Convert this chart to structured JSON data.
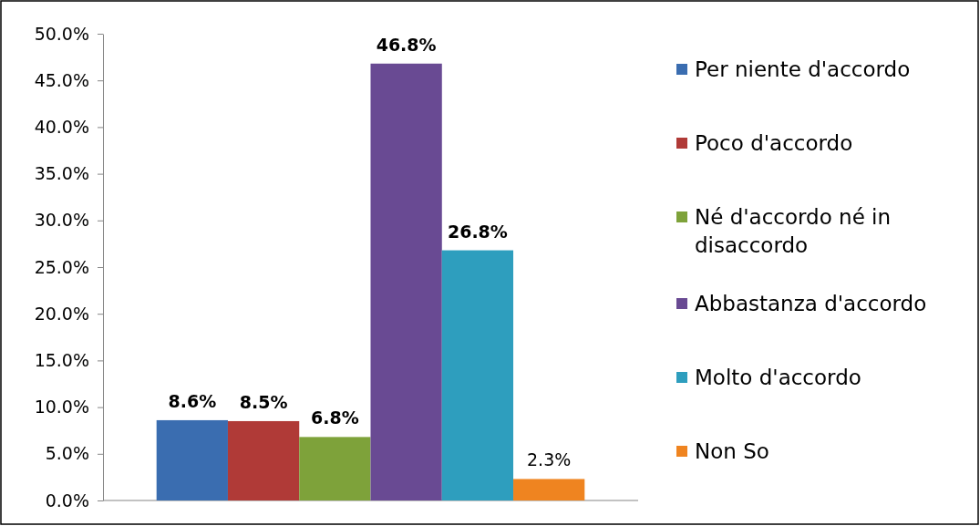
{
  "chart_data": {
    "type": "bar",
    "categories": [
      null
    ],
    "series": [
      {
        "name": "Per niente d'accordo",
        "color": "#3a6db0",
        "values": [
          8.6
        ],
        "value_labels": [
          "8.6%"
        ]
      },
      {
        "name": "Poco d'accordo",
        "color": "#b03a37",
        "values": [
          8.5
        ],
        "value_labels": [
          "8.5%"
        ]
      },
      {
        "name": "Né d'accordo né in disaccordo",
        "color": "#7ea23a",
        "values": [
          6.8
        ],
        "value_labels": [
          "6.8%"
        ]
      },
      {
        "name": "Abbastanza d'accordo",
        "color": "#694a93",
        "values": [
          46.8
        ],
        "value_labels": [
          "46.8%"
        ]
      },
      {
        "name": "Molto d'accordo",
        "color": "#2e9ebe",
        "values": [
          26.8
        ],
        "value_labels": [
          "26.8%"
        ]
      },
      {
        "name": "Non So",
        "color": "#ef8420",
        "values": [
          2.3
        ],
        "value_labels": [
          "2.3%"
        ]
      }
    ],
    "ylim": [
      0,
      50
    ],
    "yticks": [
      {
        "value": 0,
        "label": "0.0%"
      },
      {
        "value": 5,
        "label": "5.0%"
      },
      {
        "value": 10,
        "label": "10.0%"
      },
      {
        "value": 15,
        "label": "15.0%"
      },
      {
        "value": 20,
        "label": "20.0%"
      },
      {
        "value": 25,
        "label": "25.0%"
      },
      {
        "value": 30,
        "label": "30.0%"
      },
      {
        "value": 35,
        "label": "35.0%"
      },
      {
        "value": 40,
        "label": "40.0%"
      },
      {
        "value": 45,
        "label": "45.0%"
      },
      {
        "value": 50,
        "label": "50.0%"
      }
    ],
    "grid": false,
    "legend": "right"
  }
}
